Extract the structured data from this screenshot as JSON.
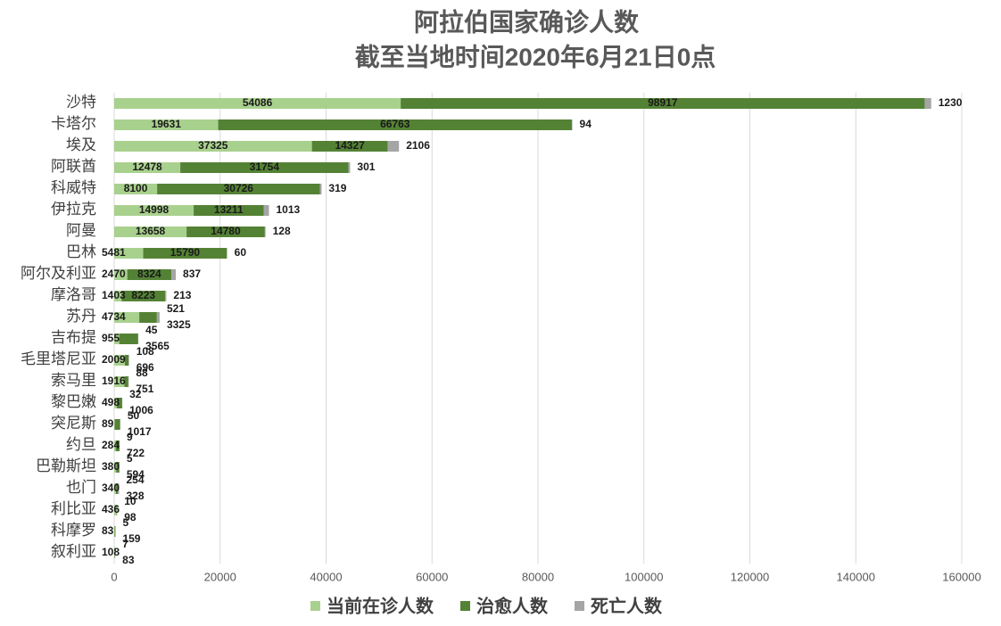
{
  "chart_data": {
    "type": "stacked-barh",
    "title": [
      "阿拉伯国家确诊人数",
      "截至当地时间2020年6月21日0点"
    ],
    "categories": [
      "沙特",
      "卡塔尔",
      "埃及",
      "阿联酋",
      "科威特",
      "伊拉克",
      "阿曼",
      "巴林",
      "阿尔及利亚",
      "摩洛哥",
      "苏丹",
      "吉布提",
      "毛里塔尼亚",
      "索马里",
      "黎巴嫩",
      "突尼斯",
      "约旦",
      "巴勒斯坦",
      "也门",
      "利比亚",
      "科摩罗",
      "叙利亚"
    ],
    "series": [
      {
        "name": "当前在诊人数",
        "color": "#a9d18e",
        "values": [
          54086,
          19631,
          37325,
          12478,
          8100,
          14998,
          13658,
          5481,
          2470,
          1403,
          4734,
          955,
          2009,
          1916,
          498,
          89,
          284,
          380,
          340,
          436,
          83,
          108
        ]
      },
      {
        "name": "治愈人数",
        "color": "#548235",
        "values": [
          98917,
          66763,
          14327,
          31754,
          30726,
          13211,
          14780,
          15790,
          8324,
          8223,
          3325,
          3565,
          696,
          751,
          1006,
          1017,
          722,
          594,
          328,
          98,
          159,
          83
        ]
      },
      {
        "name": "死亡人数",
        "color": "#a5a5a5",
        "values": [
          1230,
          94,
          2106,
          301,
          319,
          1013,
          128,
          60,
          837,
          213,
          521,
          45,
          108,
          88,
          32,
          50,
          9,
          5,
          254,
          10,
          5,
          7
        ]
      }
    ],
    "xlim": [
      0,
      160000
    ],
    "xticks": [
      0,
      20000,
      40000,
      60000,
      80000,
      100000,
      120000,
      140000,
      160000
    ],
    "grid": true,
    "legend": "bottom"
  }
}
